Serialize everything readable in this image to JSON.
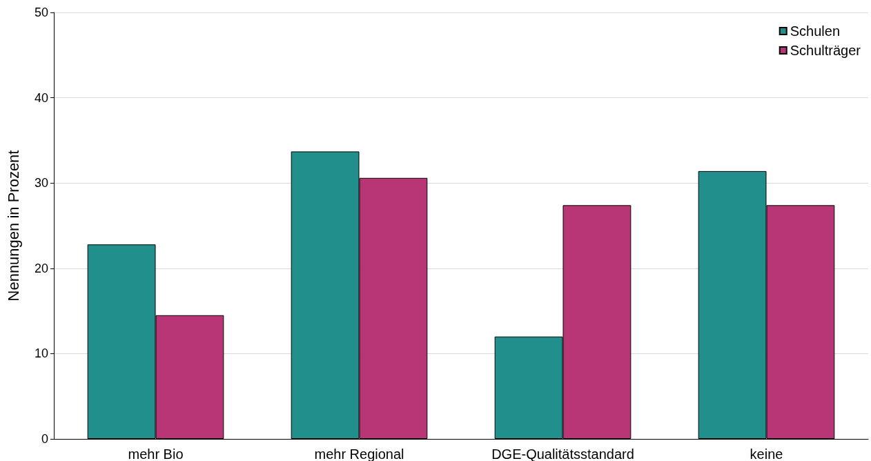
{
  "chart_data": {
    "type": "bar",
    "ylabel": "Nennungen in Prozent",
    "categories": [
      "mehr Bio",
      "mehr Regional",
      "DGE-Qualitätsstandard",
      "keine"
    ],
    "series": [
      {
        "name": "Schulen",
        "color": "#21908c",
        "values": [
          22.8,
          33.7,
          12.0,
          31.4
        ]
      },
      {
        "name": "Schulträger",
        "color": "#b83675",
        "values": [
          14.5,
          30.6,
          27.4,
          27.4
        ]
      }
    ],
    "ylim": [
      0,
      50
    ],
    "yticks": [
      0,
      10,
      20,
      30,
      40,
      50
    ],
    "grid": "y",
    "legend": "top right",
    "marker": "square"
  }
}
